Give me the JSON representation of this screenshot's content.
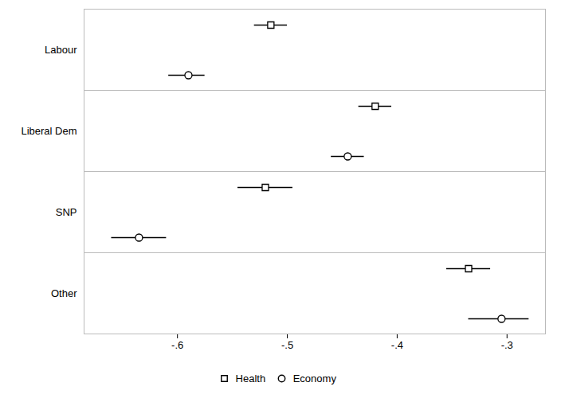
{
  "chart_data": {
    "type": "dot",
    "orientation": "horizontal",
    "categories": [
      "Labour",
      "Liberal Dem",
      "SNP",
      "Other"
    ],
    "series": [
      {
        "name": "Health",
        "marker": "square",
        "values": [
          -0.515,
          -0.42,
          -0.52,
          -0.335
        ],
        "lo": [
          -0.53,
          -0.435,
          -0.545,
          -0.355
        ],
        "hi": [
          -0.5,
          -0.405,
          -0.495,
          -0.315
        ]
      },
      {
        "name": "Economy",
        "marker": "circle",
        "values": [
          -0.59,
          -0.445,
          -0.635,
          -0.305
        ],
        "lo": [
          -0.608,
          -0.46,
          -0.66,
          -0.335
        ],
        "hi": [
          -0.575,
          -0.43,
          -0.61,
          -0.28
        ]
      }
    ],
    "xlim": [
      -0.685,
      -0.265
    ],
    "xticks": [
      {
        "value": -0.6,
        "label": "-.6"
      },
      {
        "value": -0.5,
        "label": "-.5"
      },
      {
        "value": -0.4,
        "label": "-.4"
      },
      {
        "value": -0.3,
        "label": "-.3"
      }
    ],
    "legend": "bottom"
  }
}
